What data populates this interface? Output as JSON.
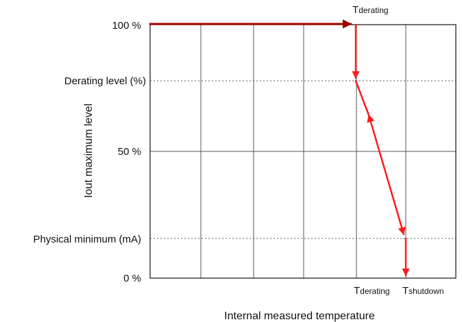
{
  "y_axis": {
    "title": "Iout maximum level",
    "labels": {
      "max": "100 %",
      "derating": "Derating level (%)",
      "half": "50 %",
      "physical_min": "Physical minimum (mA)",
      "zero": "0 %"
    }
  },
  "x_axis": {
    "title": "Internal measured temperature",
    "tick_derating": {
      "main": "T",
      "sub": "derating"
    },
    "tick_shutdown": {
      "main": "T",
      "sub": "shutdown"
    }
  },
  "top_marker": {
    "main": "T",
    "sub": "derating"
  },
  "colors": {
    "arrow_primary": "#ff1a1a",
    "arrow_dark": "#a00000",
    "grid": "#555555",
    "frame": "#111111"
  }
}
